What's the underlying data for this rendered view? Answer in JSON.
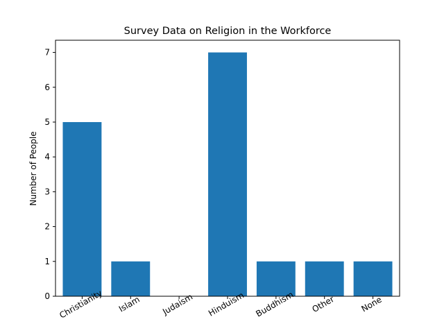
{
  "chart_data": {
    "type": "bar",
    "title": "Survey Data on Religion in the Workforce",
    "xlabel": "",
    "ylabel": "Number of People",
    "categories": [
      "Christianity",
      "Islam",
      "Judaism",
      "Hinduism",
      "Buddhism",
      "Other",
      "None"
    ],
    "values": [
      5,
      1,
      0,
      7,
      1,
      1,
      1
    ],
    "ylim": [
      0,
      7.35
    ],
    "yticks": [
      0,
      1,
      2,
      3,
      4,
      5,
      6,
      7
    ],
    "grid": false,
    "bar_color": "#1f77b4"
  }
}
